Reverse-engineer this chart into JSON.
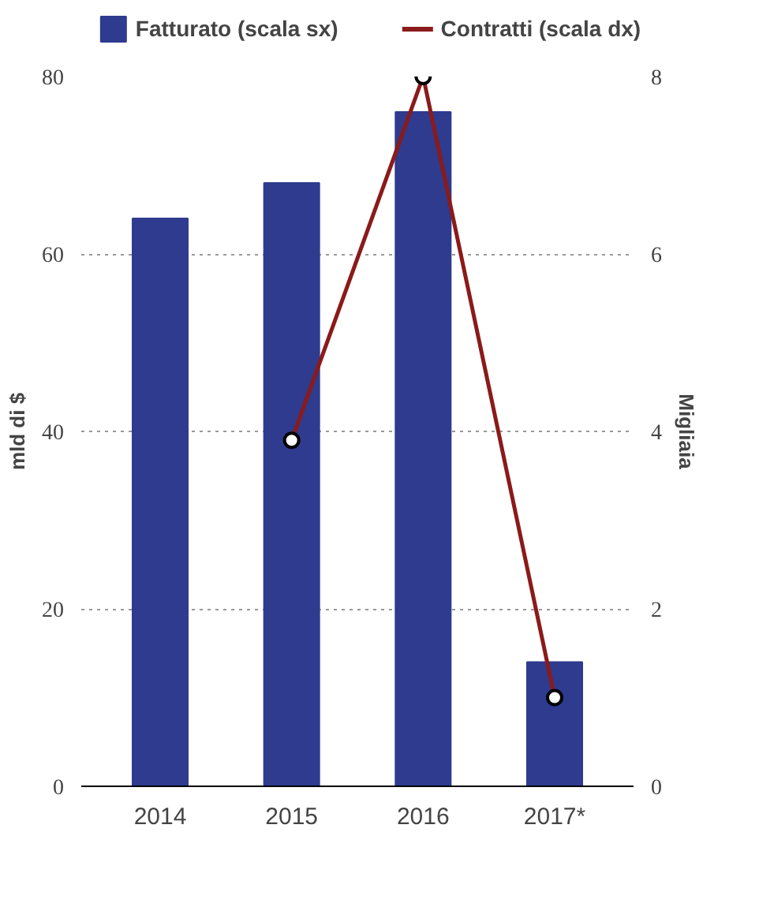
{
  "chart_data": {
    "type": "bar",
    "ylabel": "mld di $",
    "y2label": "Migliaia",
    "categories": [
      "2014",
      "2015",
      "2016",
      "2017*"
    ],
    "series": [
      {
        "name": "Fatturato (scala sx)",
        "color": "#2e3b8e",
        "values": [
          64,
          68,
          76,
          14
        ]
      },
      {
        "name": "Contratti (scala dx)",
        "type": "line",
        "axis": "y2",
        "color": "#8b1a1a",
        "marker": "circle",
        "values": [
          null,
          3.9,
          8.0,
          1.0
        ]
      }
    ],
    "ylim": [
      0,
      80
    ],
    "yticks": [
      0,
      20,
      40,
      60,
      80
    ],
    "y2lim": [
      0,
      8
    ],
    "y2ticks": [
      0,
      2,
      4,
      6,
      8
    ],
    "grid": "y",
    "legend": "top"
  }
}
